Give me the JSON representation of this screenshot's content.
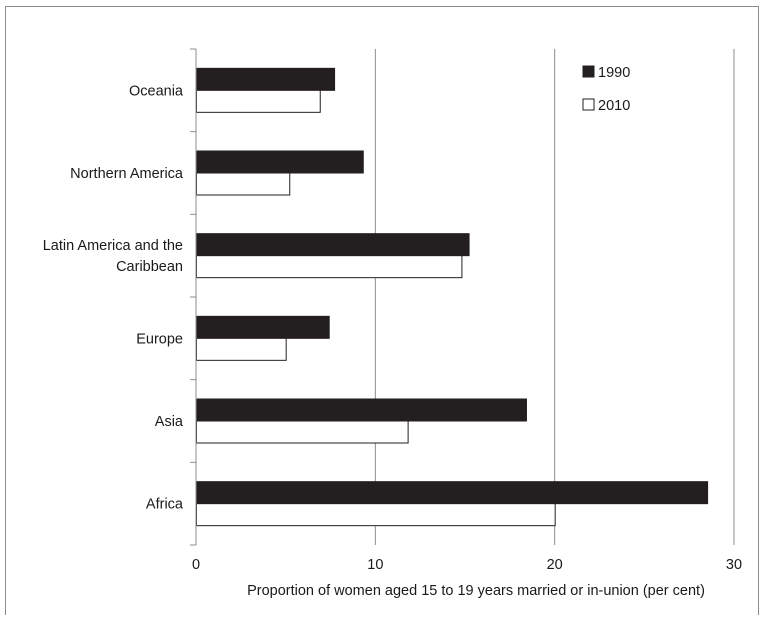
{
  "chart_data": {
    "type": "bar",
    "orientation": "horizontal",
    "categories": [
      "Africa",
      "Asia",
      "Europe",
      "Latin America and the Caribbean",
      "Northern America",
      "Oceania"
    ],
    "category_label_lines": [
      [
        "Africa"
      ],
      [
        "Asia"
      ],
      [
        "Europe"
      ],
      [
        "Latin America and the",
        "Caribbean"
      ],
      [
        "Northern America"
      ],
      [
        "Oceania"
      ]
    ],
    "series": [
      {
        "name": "1990",
        "color": "#231f20",
        "values": [
          28.5,
          18.4,
          7.4,
          15.2,
          9.3,
          7.7
        ]
      },
      {
        "name": "2010",
        "color": "#ffffff",
        "values": [
          20.0,
          11.8,
          5.0,
          14.8,
          5.2,
          6.9
        ]
      }
    ],
    "title": "",
    "xlabel": "Proportion of women aged 15 to 19 years married or in-union (per cent)",
    "ylabel": "",
    "xlim": [
      0,
      30
    ],
    "xticks": [
      0,
      10,
      20,
      30
    ],
    "grid": "vertical",
    "legend_position": "top-right"
  }
}
